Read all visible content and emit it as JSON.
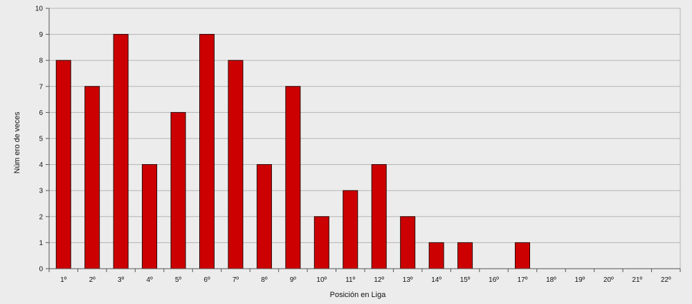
{
  "chart_data": {
    "type": "bar",
    "title": "",
    "xlabel": "Posición en Liga",
    "ylabel": "Núm ero de veces",
    "categories": [
      "1º",
      "2º",
      "3º",
      "4º",
      "5º",
      "6º",
      "7º",
      "8º",
      "9º",
      "10º",
      "11º",
      "12º",
      "13º",
      "14º",
      "15º",
      "16º",
      "17º",
      "18º",
      "19º",
      "20º",
      "21º",
      "22º"
    ],
    "values": [
      8,
      7,
      9,
      4,
      6,
      9,
      8,
      4,
      7,
      2,
      3,
      4,
      2,
      1,
      1,
      0,
      1,
      0,
      0,
      0,
      0,
      0
    ],
    "ylim": [
      0,
      10
    ],
    "yticks": [
      0,
      1,
      2,
      3,
      4,
      5,
      6,
      7,
      8,
      9,
      10
    ],
    "grid": true,
    "bar_color": "#cc0000",
    "bar_edge_color": "#2a0000",
    "grid_color": "#b3b3b3",
    "plot_background": "#ececec"
  }
}
